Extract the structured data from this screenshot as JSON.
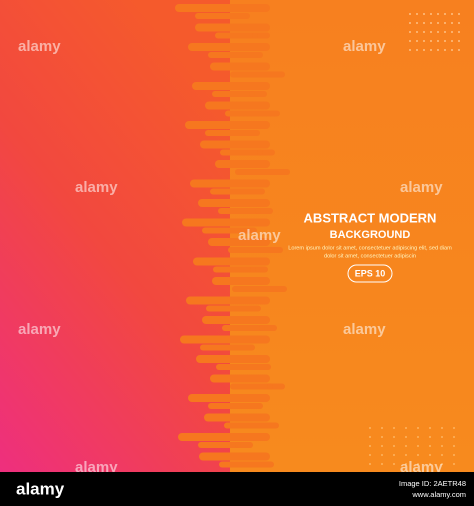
{
  "title": "ABSTRACT MODERN",
  "subtitle": "BACKGROUND",
  "body": [
    "Lorem ipsum dolor sit amet, consectetuer adipiscing elit, sed diam",
    "dolor sit amet, consectetuer adipiscin"
  ],
  "badge": "EPS 10",
  "watermark": "alamy",
  "footer": {
    "logo": "alamy",
    "image_id": "Image ID: 2AETR48",
    "url": "www.alamy.com"
  }
}
